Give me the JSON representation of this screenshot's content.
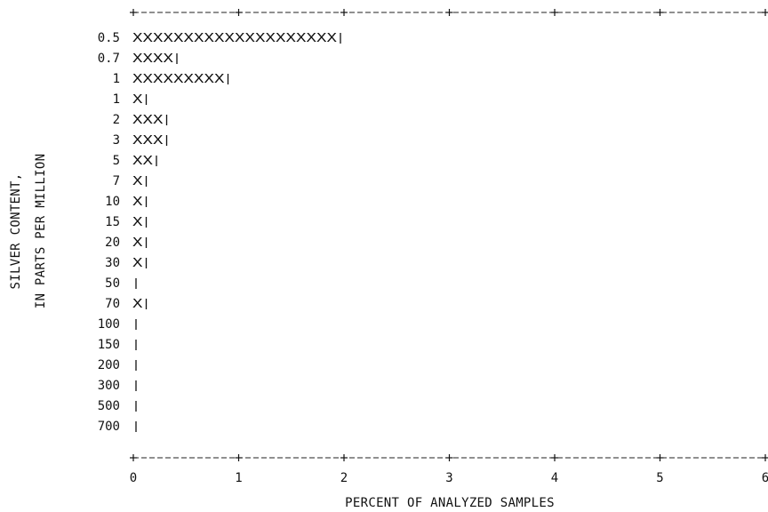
{
  "chart_data": {
    "type": "bar",
    "orientation": "horizontal",
    "title": "",
    "xlabel": "PERCENT OF ANALYZED SAMPLES",
    "ylabel_lines": [
      "SILVER CONTENT,",
      "IN PARTS PER MILLION"
    ],
    "categories": [
      "0.5",
      "0.7",
      "1",
      "1",
      "2",
      "3",
      "5",
      "7",
      "10",
      "15",
      "20",
      "30",
      "50",
      "70",
      "100",
      "150",
      "200",
      "300",
      "500",
      "700"
    ],
    "values": [
      2.0,
      0.4,
      0.9,
      0.1,
      0.3,
      0.3,
      0.2,
      0.1,
      0.1,
      0.1,
      0.1,
      0.1,
      0.0,
      0.1,
      0.0,
      0.0,
      0.0,
      0.0,
      0.0,
      0.0
    ],
    "bar_glyph_counts": [
      20,
      4,
      9,
      1,
      3,
      3,
      2,
      1,
      1,
      1,
      1,
      1,
      0,
      1,
      0,
      0,
      0,
      0,
      0,
      0
    ],
    "xticks": [
      "0",
      "1",
      "2",
      "3",
      "4",
      "5",
      "6"
    ],
    "xlim": [
      0,
      6
    ],
    "grid": false,
    "legend": "none",
    "bar_glyph": "X",
    "colors": {
      "ink": "#111111",
      "background": "#ffffff"
    }
  }
}
